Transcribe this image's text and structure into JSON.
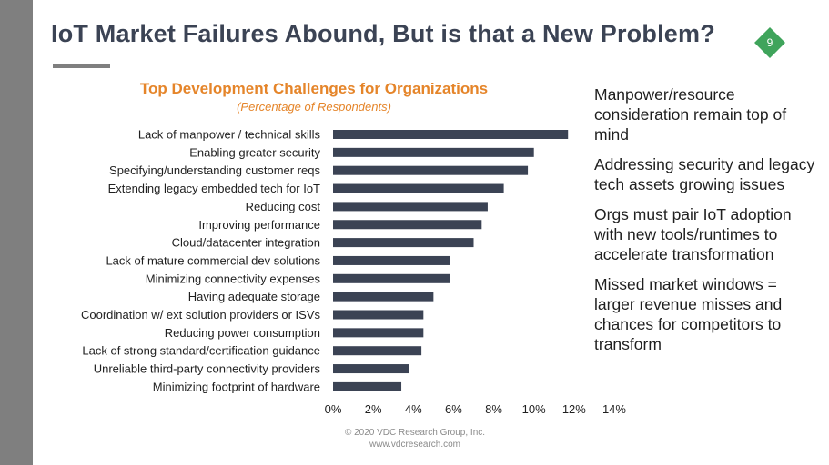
{
  "slide": {
    "title": "IoT Market Failures Abound, But is that a New Problem?",
    "page_number": "9"
  },
  "chart_data": {
    "type": "bar",
    "orientation": "horizontal",
    "title": "Top Development Challenges for Organizations",
    "subtitle": "(Percentage of Respondents)",
    "categories": [
      "Lack of manpower / technical skills",
      "Enabling greater security",
      "Specifying/understanding customer reqs",
      "Extending legacy embedded tech for IoT",
      "Reducing cost",
      "Improving performance",
      "Cloud/datacenter integration",
      "Lack of mature commercial dev solutions",
      "Minimizing connectivity expenses",
      "Having adequate storage",
      "Coordination w/ ext solution providers or ISVs",
      "Reducing power consumption",
      "Lack of strong standard/certification guidance",
      "Unreliable third-party connectivity providers",
      "Minimizing footprint of hardware"
    ],
    "values": [
      11.7,
      10.0,
      9.7,
      8.5,
      7.7,
      7.4,
      7.0,
      5.8,
      5.8,
      5.0,
      4.5,
      4.5,
      4.4,
      3.8,
      3.4
    ],
    "xlim": [
      0,
      14
    ],
    "xticks": [
      "0%",
      "2%",
      "4%",
      "6%",
      "8%",
      "10%",
      "12%",
      "14%"
    ],
    "colors": {
      "bar": "#3b4354",
      "title": "#e5852a"
    }
  },
  "bullets": [
    "Manpower/resource consideration remain top of mind",
    "Addressing security and legacy tech assets growing issues",
    "Orgs must pair IoT adoption with new tools/runtimes to accelerate transformation",
    "Missed market windows = larger revenue misses and chances for competitors to transform"
  ],
  "footer": {
    "copyright": "© 2020 VDC Research Group, Inc.",
    "website": "www.vdcresearch.com"
  }
}
